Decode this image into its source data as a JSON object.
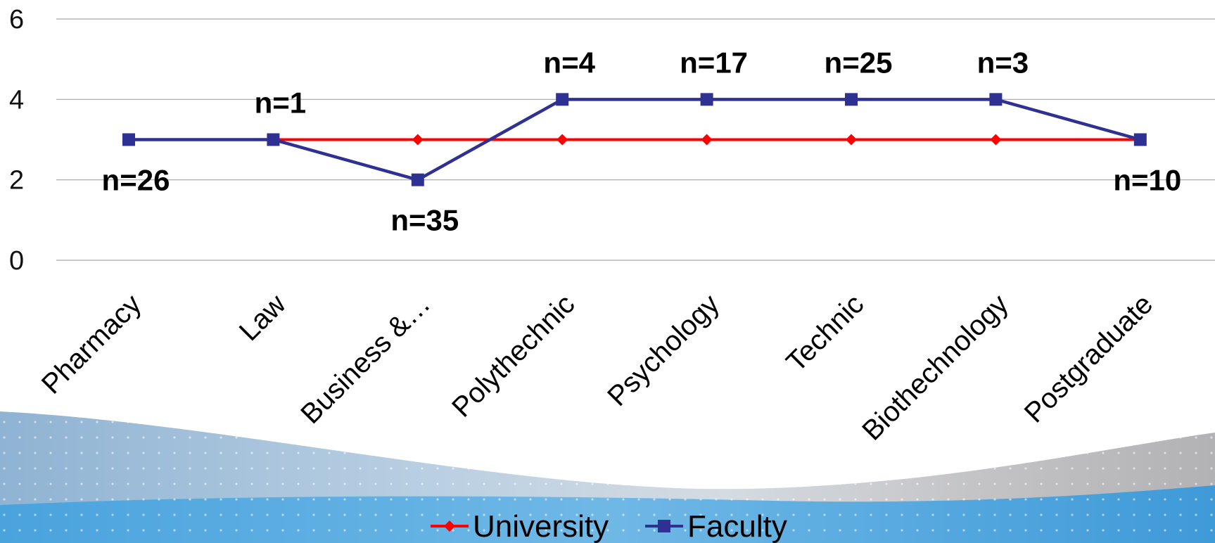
{
  "chart_data": {
    "type": "line",
    "categories": [
      "Pharmacy",
      "Law",
      "Business &…",
      "Polythechnic",
      "Psychology",
      "Technic",
      "Biothechnology",
      "Postgraduate"
    ],
    "ylim": [
      0,
      6
    ],
    "yticks": [
      0,
      2,
      4,
      6
    ],
    "grid": true,
    "legend_position": "bottom",
    "series": [
      {
        "name": "University",
        "values": [
          3,
          3,
          3,
          3,
          3,
          3,
          3,
          3
        ],
        "color": "#ff0000",
        "marker": "diamond"
      },
      {
        "name": "Faculty",
        "values": [
          3,
          3,
          2,
          4,
          4,
          4,
          4,
          3
        ],
        "color": "#2e3192",
        "marker": "square"
      }
    ],
    "annotations": [
      {
        "category": "Pharmacy",
        "text": "n=26",
        "placement": "below"
      },
      {
        "category": "Law",
        "text": "n=1",
        "placement": "above"
      },
      {
        "category": "Business &…",
        "text": "n=35",
        "placement": "below"
      },
      {
        "category": "Polythechnic",
        "text": "n=4",
        "placement": "above"
      },
      {
        "category": "Psychology",
        "text": "n=17",
        "placement": "above"
      },
      {
        "category": "Technic",
        "text": "n=25",
        "placement": "above"
      },
      {
        "category": "Biothechnology",
        "text": "n=3",
        "placement": "above"
      },
      {
        "category": "Postgraduate",
        "text": "n=10",
        "placement": "below"
      }
    ]
  },
  "theme": {
    "grid_color": "#a6a6a6",
    "band_colors": [
      "#7aa3c8",
      "#b7cde0",
      "#55a9dc",
      "#c7c7c7"
    ]
  }
}
